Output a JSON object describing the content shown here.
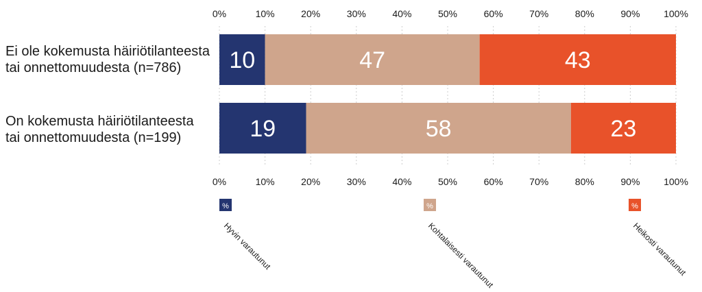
{
  "chart_data": {
    "type": "bar",
    "orientation": "horizontal",
    "stacked": true,
    "title": "",
    "xlabel": "",
    "ylabel": "",
    "xlim": [
      0,
      100
    ],
    "x_ticks": [
      "0%",
      "10%",
      "20%",
      "30%",
      "40%",
      "50%",
      "60%",
      "70%",
      "80%",
      "90%",
      "100%"
    ],
    "categories": [
      "Ei ole kokemusta häiriötilanteesta tai onnettomuudesta (n=786)",
      "On kokemusta häiriötilanteesta tai onnettomuudesta (n=199)"
    ],
    "series": [
      {
        "name": "Hyvin varautunut",
        "values": [
          10,
          19
        ],
        "color": "#243570"
      },
      {
        "name": "Kohtalaisesti varautunut",
        "values": [
          47,
          58
        ],
        "color": "#cfa58c"
      },
      {
        "name": "Heikosti varautunut",
        "values": [
          43,
          23
        ],
        "color": "#e8522a"
      }
    ],
    "legend_position": "bottom",
    "legend_swatch_text": "%",
    "gridlines": true
  }
}
